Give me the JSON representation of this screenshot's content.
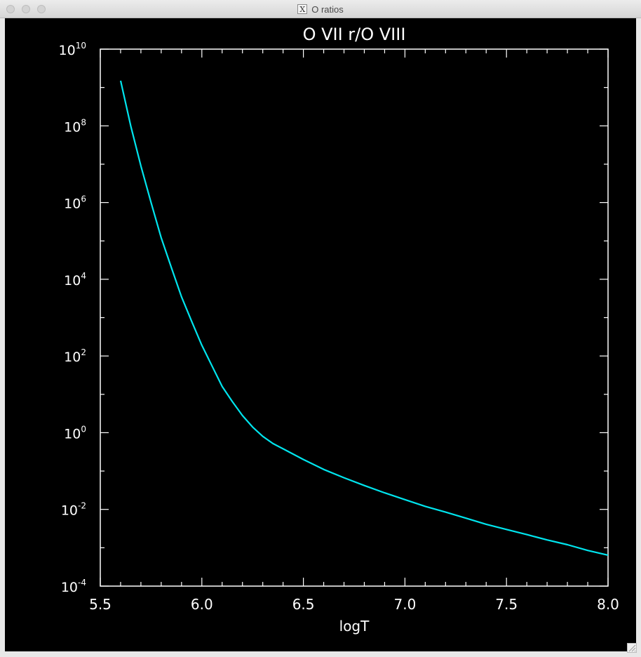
{
  "window": {
    "title": "O ratios",
    "title_icon": "x11-icon"
  },
  "chart_data": {
    "type": "line",
    "title": "O VII r/O VIII",
    "xlabel": "logT",
    "ylabel": "",
    "y_scale": "log",
    "xlim": [
      5.5,
      8.0
    ],
    "ylim": [
      0.0001,
      10000000000
    ],
    "x_ticks": [
      5.5,
      6.0,
      6.5,
      7.0,
      7.5,
      8.0
    ],
    "x_tick_labels": [
      "5.5",
      "6.0",
      "6.5",
      "7.0",
      "7.5",
      "8.0"
    ],
    "y_ticks": [
      {
        "base": "10",
        "exp": "-4",
        "value": 0.0001
      },
      {
        "base": "10",
        "exp": "-2",
        "value": 0.01
      },
      {
        "base": "10",
        "exp": "0",
        "value": 1
      },
      {
        "base": "10",
        "exp": "2",
        "value": 100
      },
      {
        "base": "10",
        "exp": "4",
        "value": 10000
      },
      {
        "base": "10",
        "exp": "6",
        "value": 1000000
      },
      {
        "base": "10",
        "exp": "8",
        "value": 100000000
      },
      {
        "base": "10",
        "exp": "10",
        "value": 10000000000
      }
    ],
    "line_color": "#00e5ee",
    "axis_color": "#ffffff",
    "background": "#000000",
    "series": [
      {
        "x": [
          5.6,
          5.65,
          5.7,
          5.75,
          5.8,
          5.85,
          5.9,
          5.95,
          6.0,
          6.05,
          6.1,
          6.15,
          6.2,
          6.25,
          6.3,
          6.35,
          6.4,
          6.5,
          6.6,
          6.7,
          6.8,
          6.9,
          7.0,
          7.1,
          7.2,
          7.3,
          7.4,
          7.5,
          7.6,
          7.7,
          7.8,
          7.9,
          8.0
        ],
        "y": [
          1500000000,
          100000000,
          9000000,
          1000000,
          120000,
          20000,
          3500,
          800,
          190,
          55,
          16,
          6.5,
          2.8,
          1.4,
          0.8,
          0.52,
          0.38,
          0.2,
          0.11,
          0.067,
          0.042,
          0.027,
          0.018,
          0.012,
          0.0085,
          0.0059,
          0.0041,
          0.003,
          0.0022,
          0.0016,
          0.0012,
          0.00085,
          0.00064
        ]
      }
    ]
  }
}
